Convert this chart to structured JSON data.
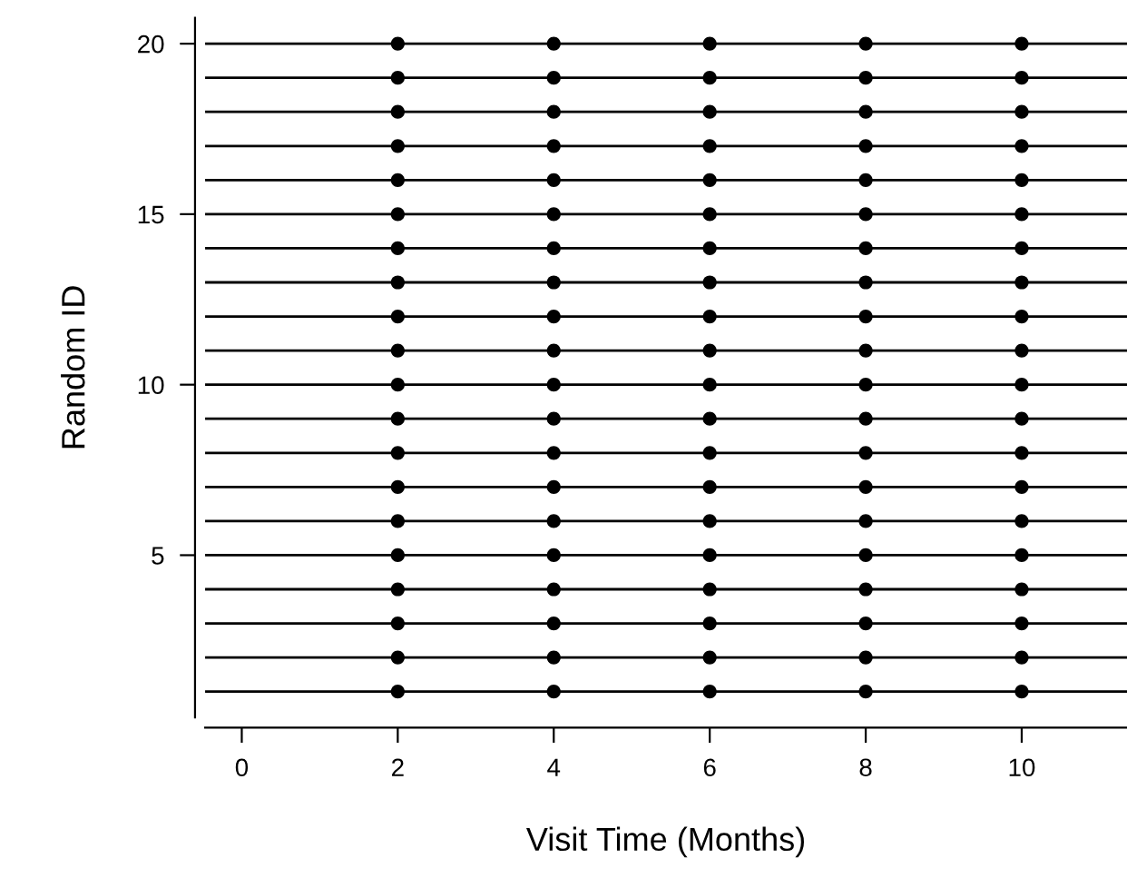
{
  "chart_data": {
    "type": "scatter",
    "xlabel": "Visit Time (Months)",
    "ylabel": "Random ID",
    "series": [
      {
        "color": "#000000",
        "x": [
          2,
          2,
          2,
          2,
          2,
          2,
          2,
          2,
          2,
          2,
          2,
          2,
          2,
          2,
          2,
          2,
          2,
          2,
          2,
          2
        ],
        "values": [
          1,
          2,
          3,
          4,
          5,
          6,
          7,
          8,
          9,
          10,
          11,
          12,
          13,
          14,
          15,
          16,
          17,
          18,
          19,
          20
        ]
      },
      {
        "color": "#000000",
        "x": [
          4,
          4,
          4,
          4,
          4,
          4,
          4,
          4,
          4,
          4,
          4,
          4,
          4,
          4,
          4,
          4,
          4,
          4,
          4,
          4
        ],
        "values": [
          1,
          2,
          3,
          4,
          5,
          6,
          7,
          8,
          9,
          10,
          11,
          12,
          13,
          14,
          15,
          16,
          17,
          18,
          19,
          20
        ]
      },
      {
        "color": "#000000",
        "x": [
          6,
          6,
          6,
          6,
          6,
          6,
          6,
          6,
          6,
          6,
          6,
          6,
          6,
          6,
          6,
          6,
          6,
          6,
          6,
          6
        ],
        "values": [
          1,
          2,
          3,
          4,
          5,
          6,
          7,
          8,
          9,
          10,
          11,
          12,
          13,
          14,
          15,
          16,
          17,
          18,
          19,
          20
        ]
      },
      {
        "color": "#000000",
        "x": [
          8,
          8,
          8,
          8,
          8,
          8,
          8,
          8,
          8,
          8,
          8,
          8,
          8,
          8,
          8,
          8,
          8,
          8,
          8,
          8
        ],
        "values": [
          1,
          2,
          3,
          4,
          5,
          6,
          7,
          8,
          9,
          10,
          11,
          12,
          13,
          14,
          15,
          16,
          17,
          18,
          19,
          20
        ]
      },
      {
        "color": "#000000",
        "x": [
          10,
          10,
          10,
          10,
          10,
          10,
          10,
          10,
          10,
          10,
          10,
          10,
          10,
          10,
          10,
          10,
          10,
          10,
          10,
          10
        ],
        "values": [
          1,
          2,
          3,
          4,
          5,
          6,
          7,
          8,
          9,
          10,
          11,
          12,
          13,
          14,
          15,
          16,
          17,
          18,
          19,
          20
        ]
      }
    ],
    "ref_lines": [
      {
        "axis": "y",
        "value": 1,
        "color": "#000000"
      },
      {
        "axis": "y",
        "value": 2,
        "color": "#000000"
      },
      {
        "axis": "y",
        "value": 3,
        "color": "#000000"
      },
      {
        "axis": "y",
        "value": 4,
        "color": "#000000"
      },
      {
        "axis": "y",
        "value": 5,
        "color": "#000000"
      },
      {
        "axis": "y",
        "value": 6,
        "color": "#000000"
      },
      {
        "axis": "y",
        "value": 7,
        "color": "#000000"
      },
      {
        "axis": "y",
        "value": 8,
        "color": "#000000"
      },
      {
        "axis": "y",
        "value": 9,
        "color": "#000000"
      },
      {
        "axis": "y",
        "value": 10,
        "color": "#000000"
      },
      {
        "axis": "y",
        "value": 11,
        "color": "#000000"
      },
      {
        "axis": "y",
        "value": 12,
        "color": "#000000"
      },
      {
        "axis": "y",
        "value": 13,
        "color": "#000000"
      },
      {
        "axis": "y",
        "value": 14,
        "color": "#000000"
      },
      {
        "axis": "y",
        "value": 15,
        "color": "#000000"
      },
      {
        "axis": "y",
        "value": 16,
        "color": "#000000"
      },
      {
        "axis": "y",
        "value": 17,
        "color": "#000000"
      },
      {
        "axis": "y",
        "value": 18,
        "color": "#000000"
      },
      {
        "axis": "y",
        "value": 19,
        "color": "#000000"
      },
      {
        "axis": "y",
        "value": 20,
        "color": "#000000"
      }
    ],
    "xlim": [
      -0.47,
      11.35
    ],
    "ylim": [
      0.24,
      20.76
    ],
    "xticks": [
      0,
      2,
      4,
      6,
      8,
      10
    ],
    "yticks": [
      5,
      10,
      15,
      20
    ],
    "marker": "circle",
    "grid": false
  }
}
